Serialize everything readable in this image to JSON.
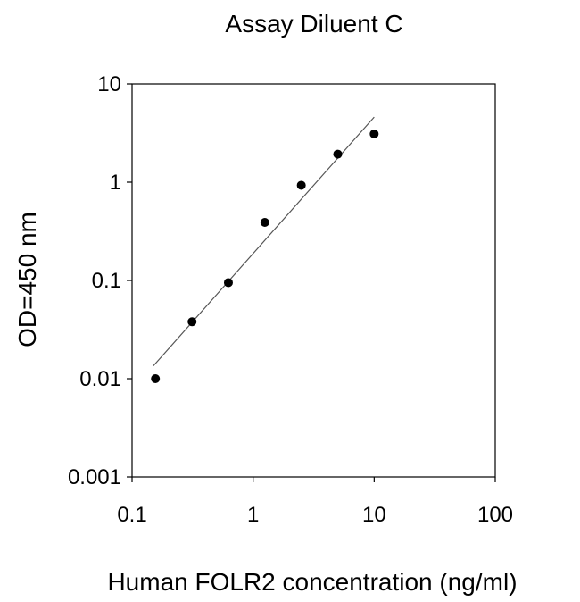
{
  "chart_data": {
    "type": "scatter",
    "title": "Assay Diluent C",
    "xlabel": "Human FOLR2 concentration (ng/ml)",
    "ylabel": "OD=450 nm",
    "xscale": "log",
    "yscale": "log",
    "xlim": [
      0.1,
      100
    ],
    "ylim": [
      0.001,
      10
    ],
    "xticks": [
      0.1,
      1,
      10,
      100
    ],
    "xtick_labels": [
      "0.1",
      "1",
      "10",
      "100"
    ],
    "yticks": [
      0.001,
      0.01,
      0.1,
      1,
      10
    ],
    "ytick_labels": [
      "0.001",
      "0.01",
      "0.1",
      "1",
      "10"
    ],
    "grid": false,
    "points": {
      "x": [
        0.156,
        0.313,
        0.625,
        1.25,
        2.5,
        5,
        10
      ],
      "y": [
        0.01,
        0.038,
        0.095,
        0.39,
        0.93,
        1.93,
        3.1
      ]
    },
    "trendline": {
      "x": [
        0.15,
        10
      ],
      "y": [
        0.0135,
        4.6
      ]
    },
    "colors": {
      "points": "#000000",
      "line": "#000000",
      "axis": "#000000"
    }
  }
}
